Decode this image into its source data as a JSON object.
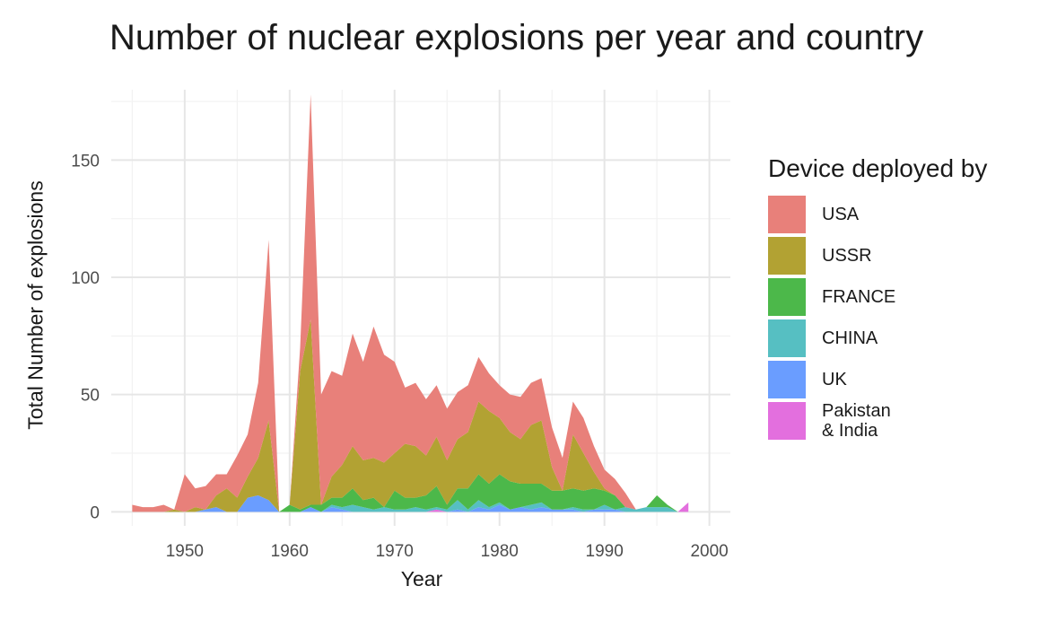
{
  "chart_data": {
    "type": "area",
    "stacked": true,
    "title": "Number of nuclear explosions per year and country",
    "xlabel": "Year",
    "ylabel": "Total Number of explosions",
    "xlim": [
      1943,
      2002
    ],
    "ylim": [
      -6,
      180
    ],
    "x_ticks": [
      1950,
      1960,
      1970,
      1980,
      1990,
      2000
    ],
    "y_ticks": [
      0,
      50,
      100,
      150
    ],
    "grid": true,
    "legend_title": "Device deployed by",
    "legend_position": "right",
    "x": [
      1945,
      1946,
      1947,
      1948,
      1949,
      1950,
      1951,
      1952,
      1953,
      1954,
      1955,
      1956,
      1957,
      1958,
      1959,
      1960,
      1961,
      1962,
      1963,
      1964,
      1965,
      1966,
      1967,
      1968,
      1969,
      1970,
      1971,
      1972,
      1973,
      1974,
      1975,
      1976,
      1977,
      1978,
      1979,
      1980,
      1981,
      1982,
      1983,
      1984,
      1985,
      1986,
      1987,
      1988,
      1989,
      1990,
      1991,
      1992,
      1993,
      1994,
      1995,
      1996,
      1997,
      1998
    ],
    "series": [
      {
        "name": "Pakistan & India",
        "color": "#e36fde",
        "values": [
          0,
          0,
          0,
          0,
          0,
          0,
          0,
          0,
          0,
          0,
          0,
          0,
          0,
          0,
          0,
          0,
          0,
          0,
          0,
          0,
          0,
          0,
          0,
          0,
          0,
          0,
          0,
          0,
          0,
          1,
          0,
          0,
          0,
          0,
          0,
          0,
          0,
          0,
          0,
          0,
          0,
          0,
          0,
          0,
          0,
          0,
          0,
          0,
          0,
          0,
          0,
          0,
          0,
          4
        ]
      },
      {
        "name": "UK",
        "color": "#6a9dff",
        "values": [
          0,
          0,
          0,
          0,
          0,
          0,
          0,
          1,
          2,
          0,
          0,
          6,
          7,
          5,
          0,
          0,
          0,
          2,
          0,
          2,
          1,
          0,
          0,
          0,
          0,
          0,
          0,
          0,
          0,
          0,
          0,
          1,
          0,
          2,
          1,
          3,
          1,
          2,
          1,
          2,
          1,
          1,
          1,
          0,
          1,
          1,
          1,
          0,
          0,
          0,
          0,
          0,
          0,
          0
        ]
      },
      {
        "name": "CHINA",
        "color": "#56bfc2",
        "values": [
          0,
          0,
          0,
          0,
          0,
          0,
          0,
          0,
          0,
          0,
          0,
          0,
          0,
          0,
          0,
          0,
          0,
          0,
          0,
          1,
          1,
          3,
          2,
          1,
          2,
          1,
          1,
          2,
          1,
          1,
          1,
          4,
          1,
          3,
          1,
          1,
          0,
          0,
          2,
          2,
          0,
          0,
          1,
          1,
          0,
          2,
          0,
          2,
          1,
          2,
          2,
          2,
          0,
          0
        ]
      },
      {
        "name": "FRANCE",
        "color": "#4cb84a",
        "values": [
          0,
          0,
          0,
          0,
          0,
          0,
          0,
          0,
          0,
          0,
          0,
          0,
          0,
          0,
          0,
          3,
          1,
          1,
          3,
          3,
          4,
          7,
          3,
          5,
          0,
          8,
          5,
          4,
          6,
          9,
          2,
          5,
          9,
          11,
          10,
          12,
          12,
          10,
          9,
          8,
          8,
          8,
          8,
          8,
          9,
          6,
          6,
          0,
          0,
          0,
          5,
          1,
          0,
          0
        ]
      },
      {
        "name": "USSR",
        "color": "#b2a233",
        "values": [
          0,
          0,
          0,
          0,
          1,
          0,
          2,
          0,
          5,
          10,
          6,
          9,
          16,
          34,
          0,
          0,
          59,
          79,
          0,
          9,
          14,
          18,
          17,
          17,
          19,
          16,
          23,
          22,
          17,
          21,
          19,
          21,
          24,
          31,
          31,
          24,
          21,
          19,
          25,
          27,
          10,
          0,
          23,
          16,
          7,
          1,
          0,
          0,
          0,
          0,
          0,
          0,
          0,
          0
        ]
      },
      {
        "name": "USA",
        "color": "#e8807a",
        "values": [
          3,
          2,
          2,
          3,
          0,
          16,
          8,
          10,
          9,
          6,
          18,
          18,
          32,
          77,
          0,
          0,
          10,
          96,
          47,
          45,
          38,
          48,
          42,
          56,
          46,
          39,
          24,
          27,
          24,
          22,
          22,
          20,
          20,
          19,
          16,
          14,
          16,
          18,
          18,
          18,
          17,
          14,
          14,
          15,
          11,
          8,
          7,
          6,
          0,
          0,
          0,
          0,
          0,
          0
        ]
      }
    ],
    "legend_order": [
      "USA",
      "USSR",
      "FRANCE",
      "CHINA",
      "UK",
      "Pakistan & India"
    ]
  }
}
